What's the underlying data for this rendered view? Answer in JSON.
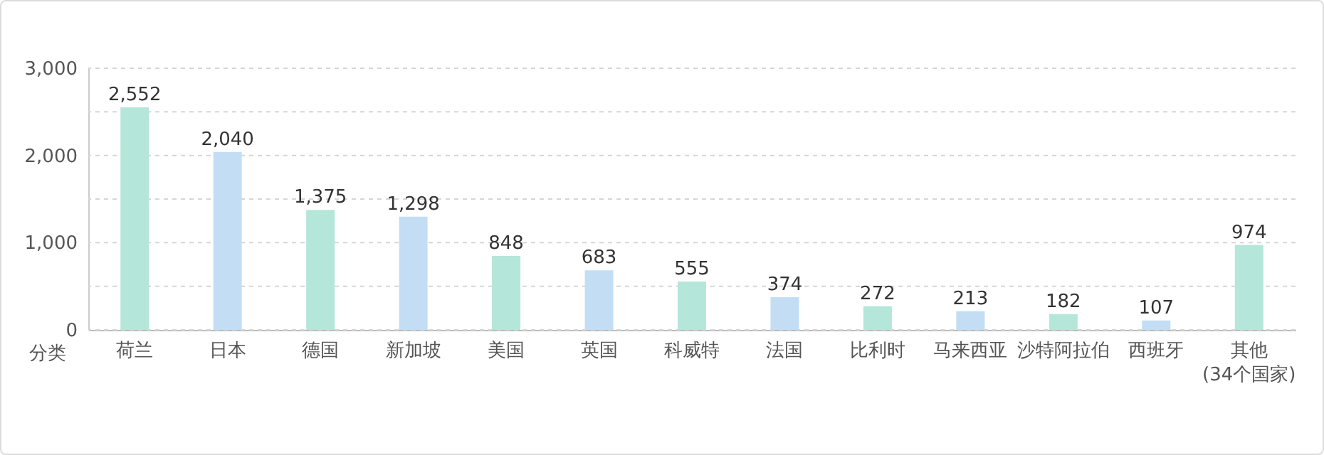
{
  "chart_data": {
    "type": "bar",
    "xlabel": "分类",
    "categories": [
      "荷兰",
      "日本",
      "德国",
      "新加坡",
      "美国",
      "英国",
      "科威特",
      "法国",
      "比利时",
      "马来西亚",
      "沙特阿拉伯",
      "西班牙",
      "其他\n(34个国家)"
    ],
    "values": [
      2552,
      2040,
      1375,
      1298,
      848,
      683,
      555,
      374,
      272,
      213,
      182,
      107,
      974
    ],
    "colors": [
      "#b5e6da",
      "#c3def4",
      "#b5e6da",
      "#c3def4",
      "#b5e6da",
      "#c3def4",
      "#b5e6da",
      "#c3def4",
      "#b5e6da",
      "#c3def4",
      "#b5e6da",
      "#c3def4",
      "#b5e6da"
    ],
    "ylim": [
      0,
      3000
    ],
    "value_labels": [
      "2,552",
      "2,040",
      "1,375",
      "1,298",
      "848",
      "683",
      "555",
      "374",
      "272",
      "213",
      "182",
      "107",
      "974"
    ],
    "yticks": [
      0,
      {
        "value": 500,
        "label": null
      },
      {
        "value": 1000,
        "label": "1,000"
      },
      {
        "value": 1500,
        "label": null
      },
      {
        "value": 2000,
        "label": "2,000"
      },
      {
        "value": 2500,
        "label": null
      },
      {
        "value": 3000,
        "label": "3,000"
      }
    ],
    "grid": "y"
  }
}
